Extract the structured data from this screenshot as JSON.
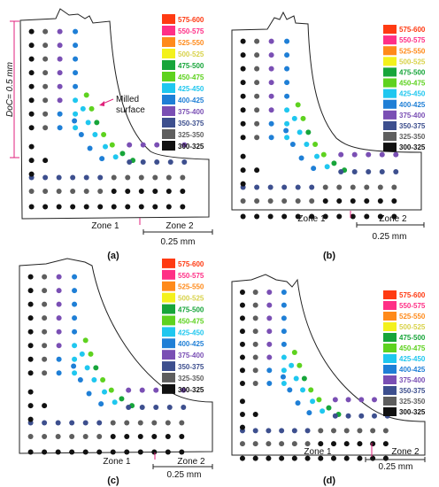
{
  "legend": {
    "items": [
      {
        "label": "575-600",
        "color": "#ff3a12"
      },
      {
        "label": "550-575",
        "color": "#ff2f86"
      },
      {
        "label": "525-550",
        "color": "#ff8a1a"
      },
      {
        "label": "500-525",
        "color": "#f3f11c"
      },
      {
        "label": "475-500",
        "color": "#17a53a"
      },
      {
        "label": "450-475",
        "color": "#5ed21f"
      },
      {
        "label": "425-450",
        "color": "#1fc7ef"
      },
      {
        "label": "400-425",
        "color": "#1f7fd6"
      },
      {
        "label": "375-400",
        "color": "#7a4fb4"
      },
      {
        "label": "350-375",
        "color": "#3d4f8e"
      },
      {
        "label": "325-350",
        "color": "#5e5e5e"
      },
      {
        "label": "300-325",
        "color": "#111111"
      }
    ]
  },
  "annotations": {
    "doc_label": "DoC= 0.5 mm",
    "milled_line1": "Milled",
    "milled_line2": "surface",
    "zone1": "Zone 1",
    "zone2": "Zone 2",
    "scale": "0.25 mm"
  },
  "panels": [
    {
      "label": "(a)",
      "show_doc": true
    },
    {
      "label": "(b)",
      "show_doc": false
    },
    {
      "label": "(c)",
      "show_doc": false
    },
    {
      "label": "(d)",
      "show_doc": false
    }
  ]
}
